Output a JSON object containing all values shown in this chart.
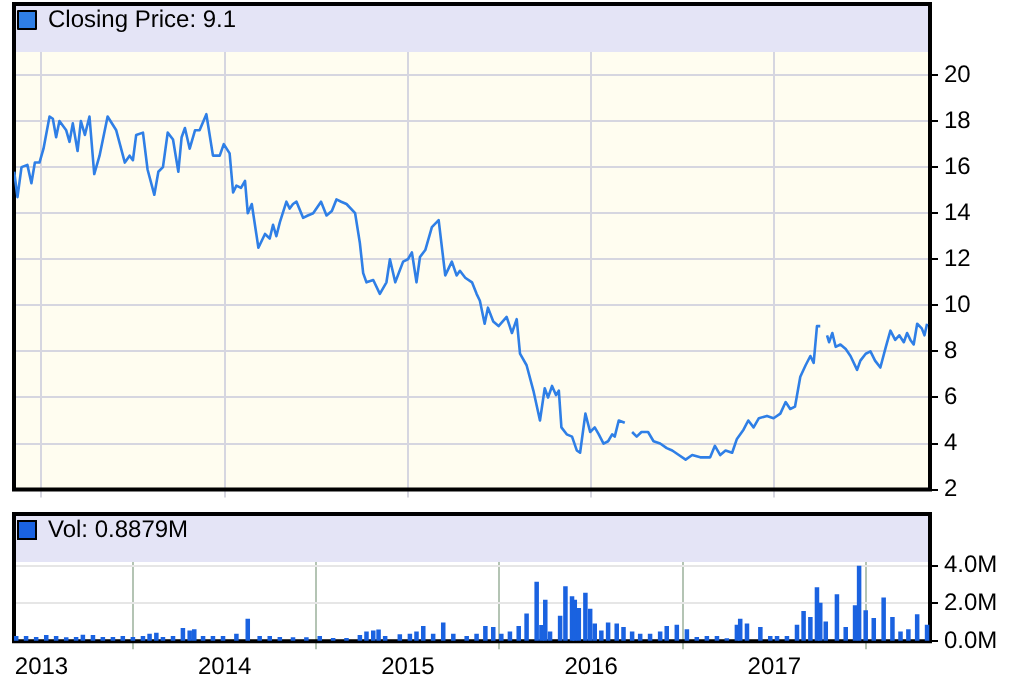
{
  "chart_data": [
    {
      "type": "line",
      "legend": "top left",
      "grid": true,
      "tick_labels": "y",
      "xlim": [
        2012.85,
        2017.85
      ],
      "xticks": [
        2013,
        2014,
        2015,
        2016,
        2017
      ],
      "ylim": [
        2,
        21
      ],
      "yticks": [
        2,
        4,
        6,
        8,
        10,
        12,
        14,
        16,
        18,
        20
      ],
      "series": [
        {
          "name": "Closing Price: 9.1",
          "color": "#2f7fe6",
          "x": [
            2012.851,
            2012.869,
            2012.891,
            2012.923,
            2012.945,
            2012.964,
            2012.989,
            2013.011,
            2013.044,
            2013.062,
            2013.08,
            2013.098,
            2013.135,
            2013.153,
            2013.171,
            2013.197,
            2013.215,
            2013.237,
            2013.262,
            2013.288,
            2013.317,
            2013.361,
            2013.408,
            2013.455,
            2013.481,
            2013.499,
            2013.517,
            2013.554,
            2013.579,
            2013.616,
            2013.638,
            2013.663,
            2013.689,
            2013.718,
            2013.747,
            2013.765,
            2013.783,
            2013.809,
            2013.838,
            2013.863,
            2013.9,
            2013.936,
            2013.973,
            2013.995,
            2014.027,
            2014.046,
            2014.064,
            2014.089,
            2014.111,
            2014.126,
            2014.148,
            2014.184,
            2014.22,
            2014.246,
            2014.264,
            2014.282,
            2014.301,
            2014.337,
            2014.355,
            2014.373,
            2014.392,
            2014.428,
            2014.454,
            2014.483,
            2014.526,
            2014.556,
            2014.585,
            2014.61,
            2014.636,
            2014.665,
            2014.712,
            2014.738,
            2014.756,
            2014.774,
            2014.811,
            2014.847,
            2014.883,
            2014.902,
            2014.931,
            2014.974,
            2015.0,
            2015.022,
            2015.047,
            2015.066,
            2015.095,
            2015.131,
            2015.168,
            2015.204,
            2015.24,
            2015.266,
            2015.284,
            2015.313,
            2015.35,
            2015.375,
            2015.393,
            2015.419,
            2015.437,
            2015.466,
            2015.495,
            2015.539,
            2015.568,
            2015.594,
            2015.612,
            2015.648,
            2015.685,
            2015.721,
            2015.747,
            2015.765,
            2015.787,
            2015.809,
            2015.824,
            2015.838,
            2015.867,
            2015.896,
            2015.922,
            2015.94,
            2015.969,
            2015.995,
            2016.02,
            2016.042,
            2016.068,
            2016.093,
            2016.115,
            2016.129,
            2016.151,
            2016.184,
            2016.2,
            2016.224,
            2016.249,
            2016.275,
            2016.311,
            2016.341,
            2016.377,
            2016.413,
            2016.443,
            2016.479,
            2016.516,
            2016.552,
            2016.596,
            2016.65,
            2016.676,
            2016.705,
            2016.734,
            2016.77,
            2016.796,
            2016.832,
            2016.858,
            2016.887,
            2016.916,
            2016.96,
            2016.996,
            2017.033,
            2017.062,
            2017.087,
            2017.113,
            2017.142,
            2017.171,
            2017.197,
            2017.215,
            2017.233,
            2017.251,
            2017.27,
            2017.288,
            2017.299,
            2017.317,
            2017.335,
            2017.361,
            2017.39,
            2017.416,
            2017.452,
            2017.47,
            2017.499,
            2017.525,
            2017.55,
            2017.579,
            2017.609,
            2017.634,
            2017.66,
            2017.682,
            2017.707,
            2017.725,
            2017.743,
            2017.761,
            2017.78,
            2017.805,
            2017.82,
            2017.834
          ],
          "values": [
            15.8,
            14.7,
            16.0,
            16.1,
            15.3,
            16.2,
            16.2,
            16.8,
            18.2,
            18.1,
            17.3,
            18.0,
            17.6,
            17.1,
            17.9,
            16.7,
            18.0,
            17.4,
            18.2,
            15.7,
            16.5,
            18.2,
            17.6,
            16.2,
            16.5,
            16.3,
            17.4,
            17.5,
            15.9,
            14.8,
            15.8,
            16.0,
            17.5,
            17.2,
            15.8,
            17.3,
            17.7,
            16.8,
            17.6,
            17.6,
            18.3,
            16.5,
            16.5,
            17.0,
            16.6,
            14.9,
            15.2,
            15.1,
            15.4,
            14.0,
            14.4,
            12.5,
            13.1,
            12.9,
            13.5,
            13.0,
            13.6,
            14.5,
            14.2,
            14.4,
            14.5,
            13.8,
            13.9,
            14.0,
            14.5,
            13.9,
            14.1,
            14.6,
            14.5,
            14.4,
            14.0,
            12.7,
            11.4,
            11.0,
            11.1,
            10.5,
            11.0,
            12.0,
            11.0,
            11.9,
            12.0,
            12.3,
            11.0,
            12.1,
            12.4,
            13.4,
            13.7,
            11.3,
            11.9,
            11.3,
            11.5,
            11.2,
            11.0,
            10.5,
            10.2,
            9.2,
            9.9,
            9.3,
            9.1,
            9.5,
            8.8,
            9.4,
            7.9,
            7.4,
            6.3,
            5.0,
            6.4,
            6.0,
            6.5,
            6.1,
            6.3,
            4.7,
            4.4,
            4.3,
            3.7,
            3.6,
            5.3,
            4.5,
            4.7,
            4.4,
            4.0,
            4.1,
            4.4,
            4.3,
            5.0,
            4.9,
            null,
            4.5,
            4.3,
            4.5,
            4.5,
            4.1,
            4.0,
            3.8,
            3.7,
            3.5,
            3.3,
            3.5,
            3.4,
            3.4,
            3.9,
            3.5,
            3.7,
            3.6,
            4.2,
            4.6,
            5.0,
            4.7,
            5.1,
            5.2,
            5.1,
            5.3,
            5.8,
            5.5,
            5.6,
            6.9,
            7.4,
            7.8,
            7.5,
            9.1,
            9.1,
            null,
            8.7,
            8.4,
            8.8,
            8.2,
            8.3,
            8.1,
            7.8,
            7.2,
            7.6,
            7.9,
            8.0,
            7.6,
            7.3,
            8.2,
            8.9,
            8.5,
            8.7,
            8.4,
            8.8,
            8.5,
            8.3,
            9.2,
            9.0,
            8.7,
            9.2
          ]
        }
      ]
    },
    {
      "type": "bar",
      "legend": "top left",
      "grid": true,
      "xlim": [
        2012.85,
        2017.85
      ],
      "xticks": [
        2013,
        2014,
        2015,
        2016,
        2017
      ],
      "ylim": [
        0,
        4.2
      ],
      "yticks": [
        {
          "value": 0,
          "label": "0.0M"
        },
        {
          "value": 2,
          "label": "2.0M"
        },
        {
          "value": 4,
          "label": "4.0M"
        }
      ],
      "series": [
        {
          "name": "Vol: 0.8879M",
          "color": "#1a62e0",
          "x": [
            2012.862,
            2012.916,
            2012.971,
            2013.026,
            2013.08,
            2013.135,
            2013.189,
            2013.226,
            2013.281,
            2013.335,
            2013.39,
            2013.444,
            2013.499,
            2013.554,
            2013.59,
            2013.627,
            2013.663,
            2013.718,
            2013.772,
            2013.809,
            2013.834,
            2013.882,
            2013.936,
            2013.991,
            2014.064,
            2014.126,
            2014.191,
            2014.246,
            2014.301,
            2014.373,
            2014.446,
            2014.519,
            2014.592,
            2014.665,
            2014.738,
            2014.774,
            2014.811,
            2014.84,
            2014.876,
            2014.956,
            2015.011,
            2015.047,
            2015.084,
            2015.138,
            2015.193,
            2015.248,
            2015.321,
            2015.375,
            2015.423,
            2015.466,
            2015.51,
            2015.557,
            2015.605,
            2015.648,
            2015.703,
            2015.729,
            2015.75,
            2015.776,
            2015.831,
            2015.86,
            2015.896,
            2015.911,
            2015.933,
            2015.969,
            2015.995,
            2016.02,
            2016.056,
            2016.093,
            2016.14,
            2016.177,
            2016.224,
            2016.268,
            2016.322,
            2016.377,
            2016.413,
            2016.468,
            2016.523,
            2016.577,
            2016.632,
            2016.687,
            2016.741,
            2016.796,
            2016.814,
            2016.851,
            2016.924,
            2016.978,
            2017.015,
            2017.069,
            2017.124,
            2017.16,
            2017.197,
            2017.233,
            2017.251,
            2017.281,
            2017.342,
            2017.39,
            2017.441,
            2017.463,
            2017.499,
            2017.543,
            2017.597,
            2017.645,
            2017.689,
            2017.732,
            2017.78,
            2017.834
          ],
          "values": [
            0.24,
            0.24,
            0.19,
            0.29,
            0.24,
            0.17,
            0.19,
            0.31,
            0.29,
            0.19,
            0.19,
            0.24,
            0.19,
            0.24,
            0.36,
            0.41,
            0.19,
            0.24,
            0.67,
            0.53,
            0.6,
            0.24,
            0.24,
            0.24,
            0.36,
            1.15,
            0.24,
            0.24,
            0.19,
            0.17,
            0.17,
            0.24,
            0.14,
            0.14,
            0.29,
            0.48,
            0.53,
            0.58,
            0.24,
            0.34,
            0.36,
            0.48,
            0.77,
            0.36,
            0.96,
            0.36,
            0.24,
            0.36,
            0.77,
            0.72,
            0.36,
            0.48,
            0.77,
            1.44,
            3.12,
            0.82,
            2.16,
            0.48,
            1.32,
            2.88,
            2.35,
            2.16,
            1.73,
            2.54,
            1.68,
            0.91,
            0.53,
            0.96,
            0.91,
            0.72,
            0.48,
            0.36,
            0.36,
            0.48,
            0.77,
            0.84,
            0.6,
            0.19,
            0.24,
            0.24,
            0.12,
            0.84,
            1.15,
            0.91,
            0.72,
            0.24,
            0.24,
            0.24,
            0.84,
            1.56,
            1.25,
            2.83,
            2.01,
            1.01,
            2.45,
            0.72,
            1.87,
            3.96,
            1.61,
            1.2,
            2.28,
            1.25,
            0.48,
            0.6,
            1.39,
            0.84
          ]
        }
      ]
    }
  ]
}
